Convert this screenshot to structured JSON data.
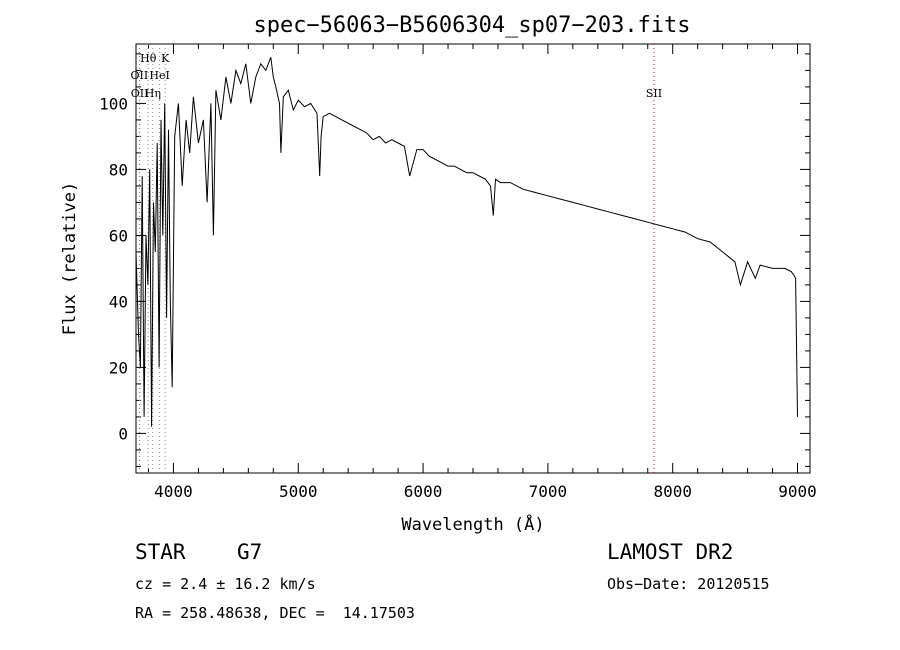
{
  "chart_data": {
    "type": "line",
    "title": "spec−56063−B5606304_sp07−203.fits",
    "xlabel": "Wavelength (Å)",
    "ylabel": "Flux (relative)",
    "xlim": [
      3700,
      9100
    ],
    "ylim": [
      -12,
      118
    ],
    "xticks": [
      4000,
      5000,
      6000,
      7000,
      8000,
      9000
    ],
    "yticks": [
      0,
      20,
      40,
      60,
      80,
      100
    ],
    "grid": false,
    "line_color": "#000000",
    "series": [
      {
        "x": [
          3700,
          3720,
          3735,
          3750,
          3765,
          3780,
          3795,
          3810,
          3825,
          3840,
          3855,
          3870,
          3885,
          3900,
          3915,
          3930,
          3945,
          3960,
          3975,
          3990,
          4010,
          4040,
          4070,
          4101,
          4130,
          4160,
          4200,
          4240,
          4270,
          4300,
          4320,
          4340,
          4380,
          4420,
          4460,
          4500,
          4540,
          4580,
          4620,
          4660,
          4700,
          4740,
          4780,
          4800,
          4820,
          4850,
          4861,
          4880,
          4920,
          4960,
          5000,
          5050,
          5100,
          5150,
          5172,
          5183,
          5200,
          5250,
          5300,
          5350,
          5400,
          5450,
          5500,
          5550,
          5600,
          5650,
          5700,
          5750,
          5800,
          5850,
          5893,
          5950,
          6000,
          6050,
          6100,
          6150,
          6200,
          6250,
          6300,
          6350,
          6400,
          6450,
          6500,
          6540,
          6563,
          6580,
          6620,
          6700,
          6800,
          6900,
          7000,
          7100,
          7200,
          7300,
          7400,
          7500,
          7600,
          7700,
          7800,
          7900,
          8000,
          8100,
          8200,
          8300,
          8400,
          8498,
          8542,
          8600,
          8662,
          8700,
          8800,
          8900,
          8950,
          8970,
          8985,
          9000
        ],
        "y": [
          55,
          30,
          20,
          78,
          5,
          60,
          45,
          80,
          2,
          70,
          55,
          88,
          20,
          95,
          60,
          100,
          35,
          92,
          40,
          14,
          90,
          100,
          75,
          95,
          85,
          102,
          88,
          95,
          70,
          100,
          60,
          104,
          95,
          108,
          100,
          110,
          106,
          112,
          100,
          108,
          112,
          110,
          114,
          108,
          105,
          100,
          85,
          102,
          104,
          98,
          101,
          99,
          100,
          97,
          78,
          90,
          96,
          97,
          96,
          95,
          94,
          93,
          92,
          91,
          89,
          90,
          88,
          89,
          88,
          87,
          78,
          86,
          86,
          84,
          83,
          82,
          81,
          81,
          80,
          79,
          79,
          78,
          77,
          75,
          66,
          77,
          76,
          76,
          74,
          73,
          72,
          71,
          70,
          69,
          68,
          67,
          66,
          65,
          64,
          63,
          62,
          61,
          59,
          58,
          55,
          52,
          45,
          52,
          47,
          51,
          50,
          50,
          49,
          48,
          47,
          5
        ]
      }
    ],
    "lines": [
      {
        "label": "Hθ",
        "x": 3798,
        "row": 0,
        "color": "#888888"
      },
      {
        "label": "K",
        "x": 3934,
        "row": 0,
        "color": "#888888"
      },
      {
        "label": "OII",
        "x": 3727,
        "row": 1,
        "color": "#888888"
      },
      {
        "label": "HeI",
        "x": 3889,
        "row": 1,
        "color": "#888888"
      },
      {
        "label": "OII",
        "x": 3729,
        "row": 2,
        "color": "#888888"
      },
      {
        "label": "Hη",
        "x": 3835,
        "row": 2,
        "color": "#888888"
      },
      {
        "label": "SII",
        "x": 7850,
        "row": 2,
        "color": "#ff0000"
      }
    ]
  },
  "info": {
    "object_type": "STAR",
    "subclass": "G7",
    "survey": "LAMOST DR2",
    "cz": "cz = 2.4 ± 16.2 km/s",
    "obs_date": "Obs−Date: 20120515",
    "radec": "RA = 258.48638, DEC =  14.17503"
  }
}
